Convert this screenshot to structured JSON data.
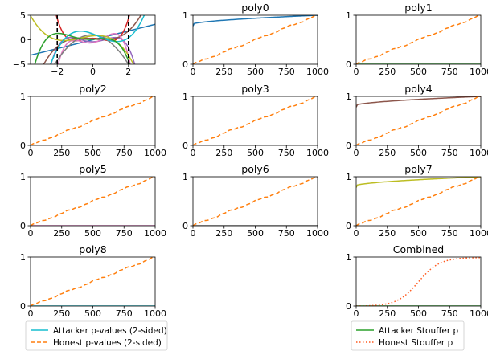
{
  "colors": {
    "honest": "#ff7f0e",
    "attacker_stouffer": "#2ca02c",
    "honest_stouffer": "#ff5a1f",
    "attacker_legend": "#17becf",
    "dashed_marker": "#000000",
    "axis": "#000000"
  },
  "chart_data": [
    {
      "type": "line",
      "title": "",
      "xlim": [
        -3.5,
        3.5
      ],
      "ylim": [
        -5,
        5
      ],
      "xticks": [
        -2,
        0,
        2
      ],
      "yticks": [
        -5,
        0,
        5
      ],
      "vlines": [
        -2,
        2
      ],
      "series": [
        {
          "color": "#1f77b4",
          "coef": [
            0.0,
            0.9,
            0,
            0
          ]
        },
        {
          "color": "#d62728",
          "coef": [
            0.3,
            0,
            -1.0,
            0,
            0.5
          ]
        },
        {
          "color": "#9467bd",
          "coef": [
            -0.4,
            0,
            1.1,
            0,
            -0.35
          ]
        },
        {
          "color": "#8c564b",
          "coef": [
            0.2,
            -0.4,
            0,
            0.3
          ]
        },
        {
          "color": "#e377c2",
          "coef": [
            -0.6,
            0.6,
            1.8,
            0,
            -0.7
          ]
        },
        {
          "color": "#7f7f7f",
          "coef": [
            1.0,
            -0.2,
            -1.4
          ]
        },
        {
          "color": "#bcbd22",
          "coef": [
            0.8,
            0.4,
            -0.6,
            -0.3
          ]
        },
        {
          "color": "#17becf",
          "coef": [
            1.2,
            -1.4,
            -0.5,
            0.5
          ]
        },
        {
          "color": "#2ca02c",
          "coef": [
            0.1,
            0.2,
            0.4,
            -0.4,
            -0.2
          ]
        }
      ]
    },
    {
      "type": "line",
      "title": "poly0",
      "attacker_color": "#1f77b4",
      "attacker": "sat",
      "attacker_start": 0.78,
      "xlim": [
        0,
        1000
      ],
      "ylim": [
        0,
        1
      ],
      "xticks": [
        0,
        250,
        500,
        750,
        1000
      ],
      "yticks": [
        0,
        1
      ]
    },
    {
      "type": "line",
      "title": "poly1",
      "attacker_color": "#2ca02c",
      "attacker": "zero",
      "xlim": [
        0,
        1000
      ],
      "ylim": [
        0,
        1
      ],
      "xticks": [
        0,
        250,
        500,
        750,
        1000
      ],
      "yticks": [
        0,
        1
      ]
    },
    {
      "type": "line",
      "title": "poly2",
      "attacker_color": "#d62728",
      "attacker": "zero",
      "xlim": [
        0,
        1000
      ],
      "ylim": [
        0,
        1
      ],
      "xticks": [
        0,
        250,
        500,
        750,
        1000
      ],
      "yticks": [
        0,
        1
      ]
    },
    {
      "type": "line",
      "title": "poly3",
      "attacker_color": "#9467bd",
      "attacker": "zero",
      "xlim": [
        0,
        1000
      ],
      "ylim": [
        0,
        1
      ],
      "xticks": [
        0,
        250,
        500,
        750,
        1000
      ],
      "yticks": [
        0,
        1
      ]
    },
    {
      "type": "line",
      "title": "poly4",
      "attacker_color": "#8c564b",
      "attacker": "sat",
      "attacker_start": 0.78,
      "xlim": [
        0,
        1000
      ],
      "ylim": [
        0,
        1
      ],
      "xticks": [
        0,
        250,
        500,
        750,
        1000
      ],
      "yticks": [
        0,
        1
      ]
    },
    {
      "type": "line",
      "title": "poly5",
      "attacker_color": "#e377c2",
      "attacker": "zero",
      "xlim": [
        0,
        1000
      ],
      "ylim": [
        0,
        1
      ],
      "xticks": [
        0,
        250,
        500,
        750,
        1000
      ],
      "yticks": [
        0,
        1
      ]
    },
    {
      "type": "line",
      "title": "poly6",
      "attacker_color": "#7f7f7f",
      "attacker": "zero",
      "xlim": [
        0,
        1000
      ],
      "ylim": [
        0,
        1
      ],
      "xticks": [
        0,
        250,
        500,
        750,
        1000
      ],
      "yticks": [
        0,
        1
      ]
    },
    {
      "type": "line",
      "title": "poly7",
      "attacker_color": "#bcbd22",
      "attacker": "sat",
      "attacker_start": 0.78,
      "xlim": [
        0,
        1000
      ],
      "ylim": [
        0,
        1
      ],
      "xticks": [
        0,
        250,
        500,
        750,
        1000
      ],
      "yticks": [
        0,
        1
      ]
    },
    {
      "type": "line",
      "title": "poly8",
      "attacker_color": "#17becf",
      "attacker": "zero",
      "xlim": [
        0,
        1000
      ],
      "ylim": [
        0,
        1
      ],
      "xticks": [
        0,
        250,
        500,
        750,
        1000
      ],
      "yticks": [
        0,
        1
      ]
    },
    {
      "type": "line",
      "title": "Combined",
      "attacker_color": "#2ca02c",
      "attacker": "zero",
      "combined": true,
      "xlim": [
        0,
        1000
      ],
      "ylim": [
        0,
        1
      ],
      "xticks": [
        0,
        250,
        500,
        750,
        1000
      ],
      "yticks": [
        0,
        1
      ]
    }
  ],
  "legends": {
    "left": {
      "items": [
        {
          "label": "Attacker p-values (2-sided)",
          "color": "#17becf",
          "style": "solid"
        },
        {
          "label": "Honest p-values (2-sided)",
          "color": "#ff7f0e",
          "style": "dashed"
        }
      ]
    },
    "right": {
      "items": [
        {
          "label": "Attacker Stouffer p",
          "color": "#2ca02c",
          "style": "solid"
        },
        {
          "label": "Honest Stouffer p",
          "color": "#ff5a1f",
          "style": "dotted"
        }
      ]
    }
  }
}
